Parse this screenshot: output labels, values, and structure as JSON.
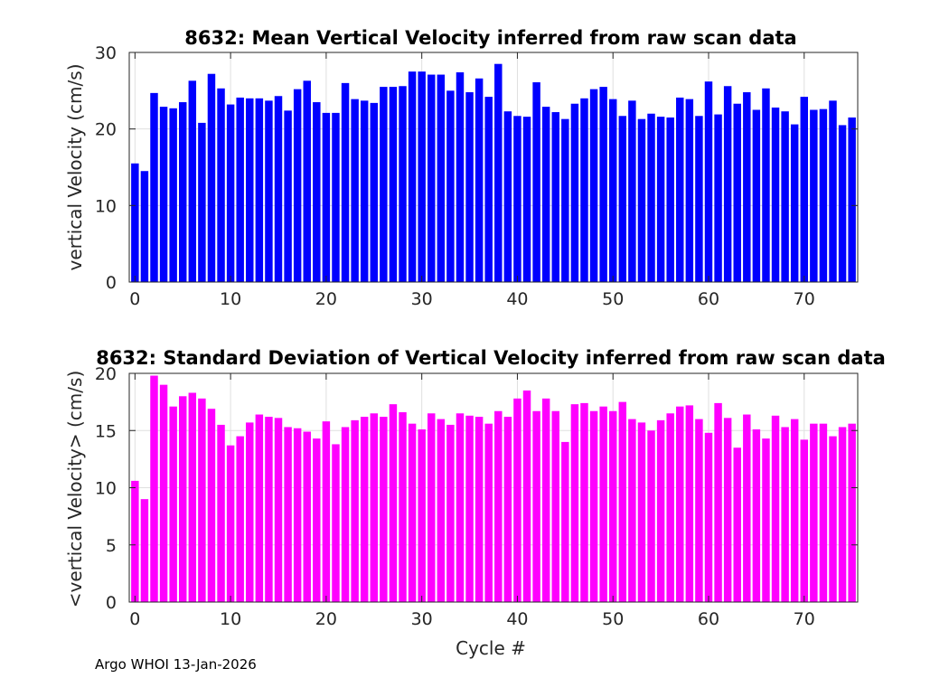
{
  "footer_text": "Argo WHOI 13-Jan-2026",
  "chart_data": [
    {
      "type": "bar",
      "title": "8632: Mean Vertical Velocity inferred from raw scan data",
      "xlabel": "",
      "ylabel": "vertical Velocity (cm/s)",
      "xlim": [
        -0.6,
        75.6
      ],
      "ylim": [
        0,
        30
      ],
      "xticks": [
        0,
        10,
        20,
        30,
        40,
        50,
        60,
        70
      ],
      "yticks": [
        0,
        10,
        20,
        30
      ],
      "grid": true,
      "color": "#0000ff",
      "x": [
        0,
        1,
        2,
        3,
        4,
        5,
        6,
        7,
        8,
        9,
        10,
        11,
        12,
        13,
        14,
        15,
        16,
        17,
        18,
        19,
        20,
        21,
        22,
        23,
        24,
        25,
        26,
        27,
        28,
        29,
        30,
        31,
        32,
        33,
        34,
        35,
        36,
        37,
        38,
        39,
        40,
        41,
        42,
        43,
        44,
        45,
        46,
        47,
        48,
        49,
        50,
        51,
        52,
        53,
        54,
        55,
        56,
        57,
        58,
        59,
        60,
        61,
        62,
        63,
        64,
        65,
        66,
        67,
        68,
        69,
        70,
        71,
        72,
        73,
        74,
        75
      ],
      "values": [
        15.5,
        14.5,
        24.7,
        22.9,
        22.7,
        23.5,
        26.3,
        20.8,
        27.2,
        25.3,
        23.2,
        24.1,
        24.0,
        24.0,
        23.7,
        24.3,
        22.4,
        25.2,
        26.3,
        23.5,
        22.1,
        22.1,
        26.0,
        23.9,
        23.7,
        23.4,
        25.5,
        25.5,
        25.6,
        27.5,
        27.5,
        27.1,
        27.1,
        25.0,
        27.4,
        24.8,
        26.6,
        24.2,
        28.5,
        22.3,
        21.7,
        21.6,
        26.1,
        22.9,
        22.2,
        21.3,
        23.3,
        24.0,
        25.2,
        25.5,
        23.9,
        21.7,
        23.7,
        21.3,
        22.0,
        21.6,
        21.5,
        24.1,
        23.9,
        21.7,
        26.2,
        21.9,
        25.6,
        23.3,
        24.8,
        22.5,
        25.3,
        22.8,
        22.3,
        20.6,
        24.2,
        22.5,
        22.6,
        23.7,
        20.5,
        21.5
      ]
    },
    {
      "type": "bar",
      "title": "8632: Standard Deviation of Vertical Velocity inferred from raw scan data",
      "xlabel": "Cycle #",
      "ylabel": "<vertical Velocity> (cm/s)",
      "xlim": [
        -0.6,
        75.6
      ],
      "ylim": [
        0,
        20
      ],
      "xticks": [
        0,
        10,
        20,
        30,
        40,
        50,
        60,
        70
      ],
      "yticks": [
        0,
        5,
        10,
        15,
        20
      ],
      "grid": true,
      "color": "#ff00ff",
      "x": [
        0,
        1,
        2,
        3,
        4,
        5,
        6,
        7,
        8,
        9,
        10,
        11,
        12,
        13,
        14,
        15,
        16,
        17,
        18,
        19,
        20,
        21,
        22,
        23,
        24,
        25,
        26,
        27,
        28,
        29,
        30,
        31,
        32,
        33,
        34,
        35,
        36,
        37,
        38,
        39,
        40,
        41,
        42,
        43,
        44,
        45,
        46,
        47,
        48,
        49,
        50,
        51,
        52,
        53,
        54,
        55,
        56,
        57,
        58,
        59,
        60,
        61,
        62,
        63,
        64,
        65,
        66,
        67,
        68,
        69,
        70,
        71,
        72,
        73,
        74,
        75
      ],
      "values": [
        10.6,
        9.0,
        19.8,
        19.0,
        17.1,
        18.0,
        18.3,
        17.8,
        16.9,
        15.5,
        13.7,
        14.5,
        15.7,
        16.4,
        16.2,
        16.1,
        15.3,
        15.2,
        14.9,
        14.3,
        15.8,
        13.8,
        15.3,
        15.9,
        16.2,
        16.5,
        16.2,
        17.3,
        16.6,
        15.6,
        15.1,
        16.5,
        16.0,
        15.5,
        16.5,
        16.3,
        16.2,
        15.6,
        16.7,
        16.2,
        17.8,
        18.5,
        16.7,
        17.8,
        16.7,
        14.0,
        17.3,
        17.4,
        16.7,
        17.1,
        16.7,
        17.5,
        16.0,
        15.7,
        15.0,
        15.9,
        16.5,
        17.1,
        17.2,
        16.0,
        14.8,
        17.4,
        16.1,
        13.5,
        16.4,
        15.1,
        14.3,
        16.3,
        15.3,
        16.0,
        14.2,
        15.6,
        15.6,
        14.5,
        15.3,
        15.6
      ]
    }
  ]
}
